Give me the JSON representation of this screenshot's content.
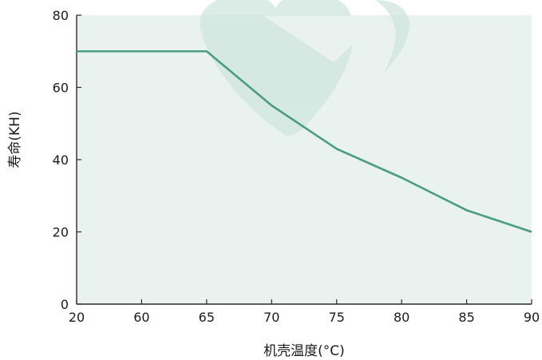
{
  "chart_data": {
    "type": "line",
    "title": "",
    "xlabel": "机壳温度(°C)",
    "ylabel": "寿命(KH)",
    "x_ticks": [
      "20",
      "60",
      "65",
      "70",
      "75",
      "80",
      "85",
      "90"
    ],
    "y_ticks": [
      0,
      20,
      40,
      60,
      80
    ],
    "ylim": [
      0,
      80
    ],
    "grid": false,
    "series": [
      {
        "x": [
          "20",
          "60",
          "65",
          "70",
          "75",
          "80",
          "85",
          "90"
        ],
        "values": [
          70,
          70,
          70,
          55,
          43,
          35,
          26,
          20
        ],
        "color": "#4a9d7f"
      }
    ],
    "colors": {
      "plot_background": "#e9f2ee",
      "axis": "#2b2b2b",
      "watermark": "#cfe5dd"
    }
  }
}
